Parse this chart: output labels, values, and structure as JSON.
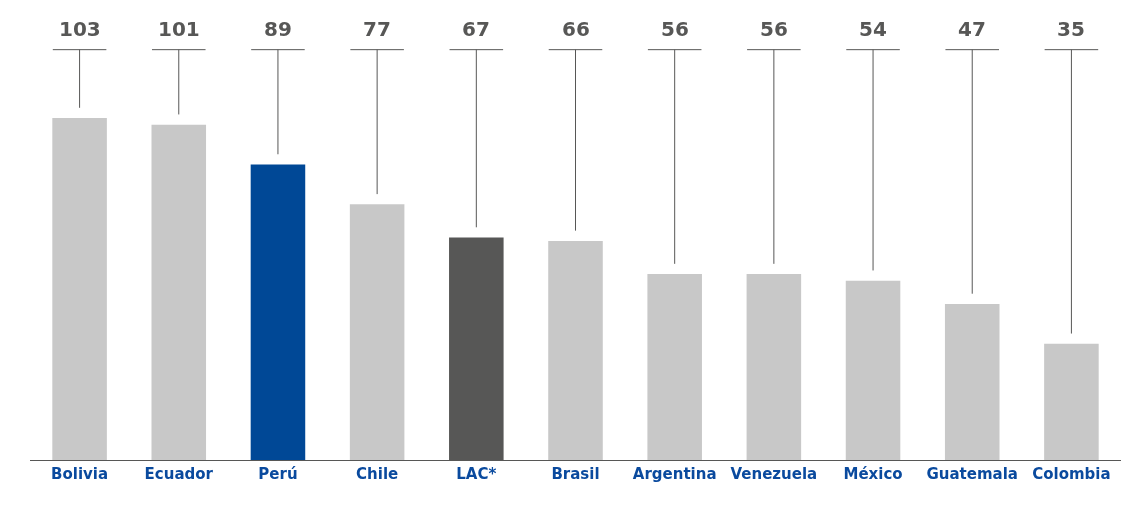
{
  "chart_data": {
    "type": "bar",
    "categories": [
      "Bolivia",
      "Ecuador",
      "Perú",
      "Chile",
      "LAC*",
      "Brasil",
      "Argentina",
      "Venezuela",
      "México",
      "Guatemala",
      "Colombia"
    ],
    "values": [
      103,
      101,
      89,
      77,
      67,
      66,
      56,
      56,
      54,
      47,
      35
    ],
    "colors": [
      "#c8c8c8",
      "#c8c8c8",
      "#004896",
      "#c8c8c8",
      "#575756",
      "#c8c8c8",
      "#c8c8c8",
      "#c8c8c8",
      "#c8c8c8",
      "#c8c8c8",
      "#c8c8c8"
    ],
    "data_labels": true
  }
}
